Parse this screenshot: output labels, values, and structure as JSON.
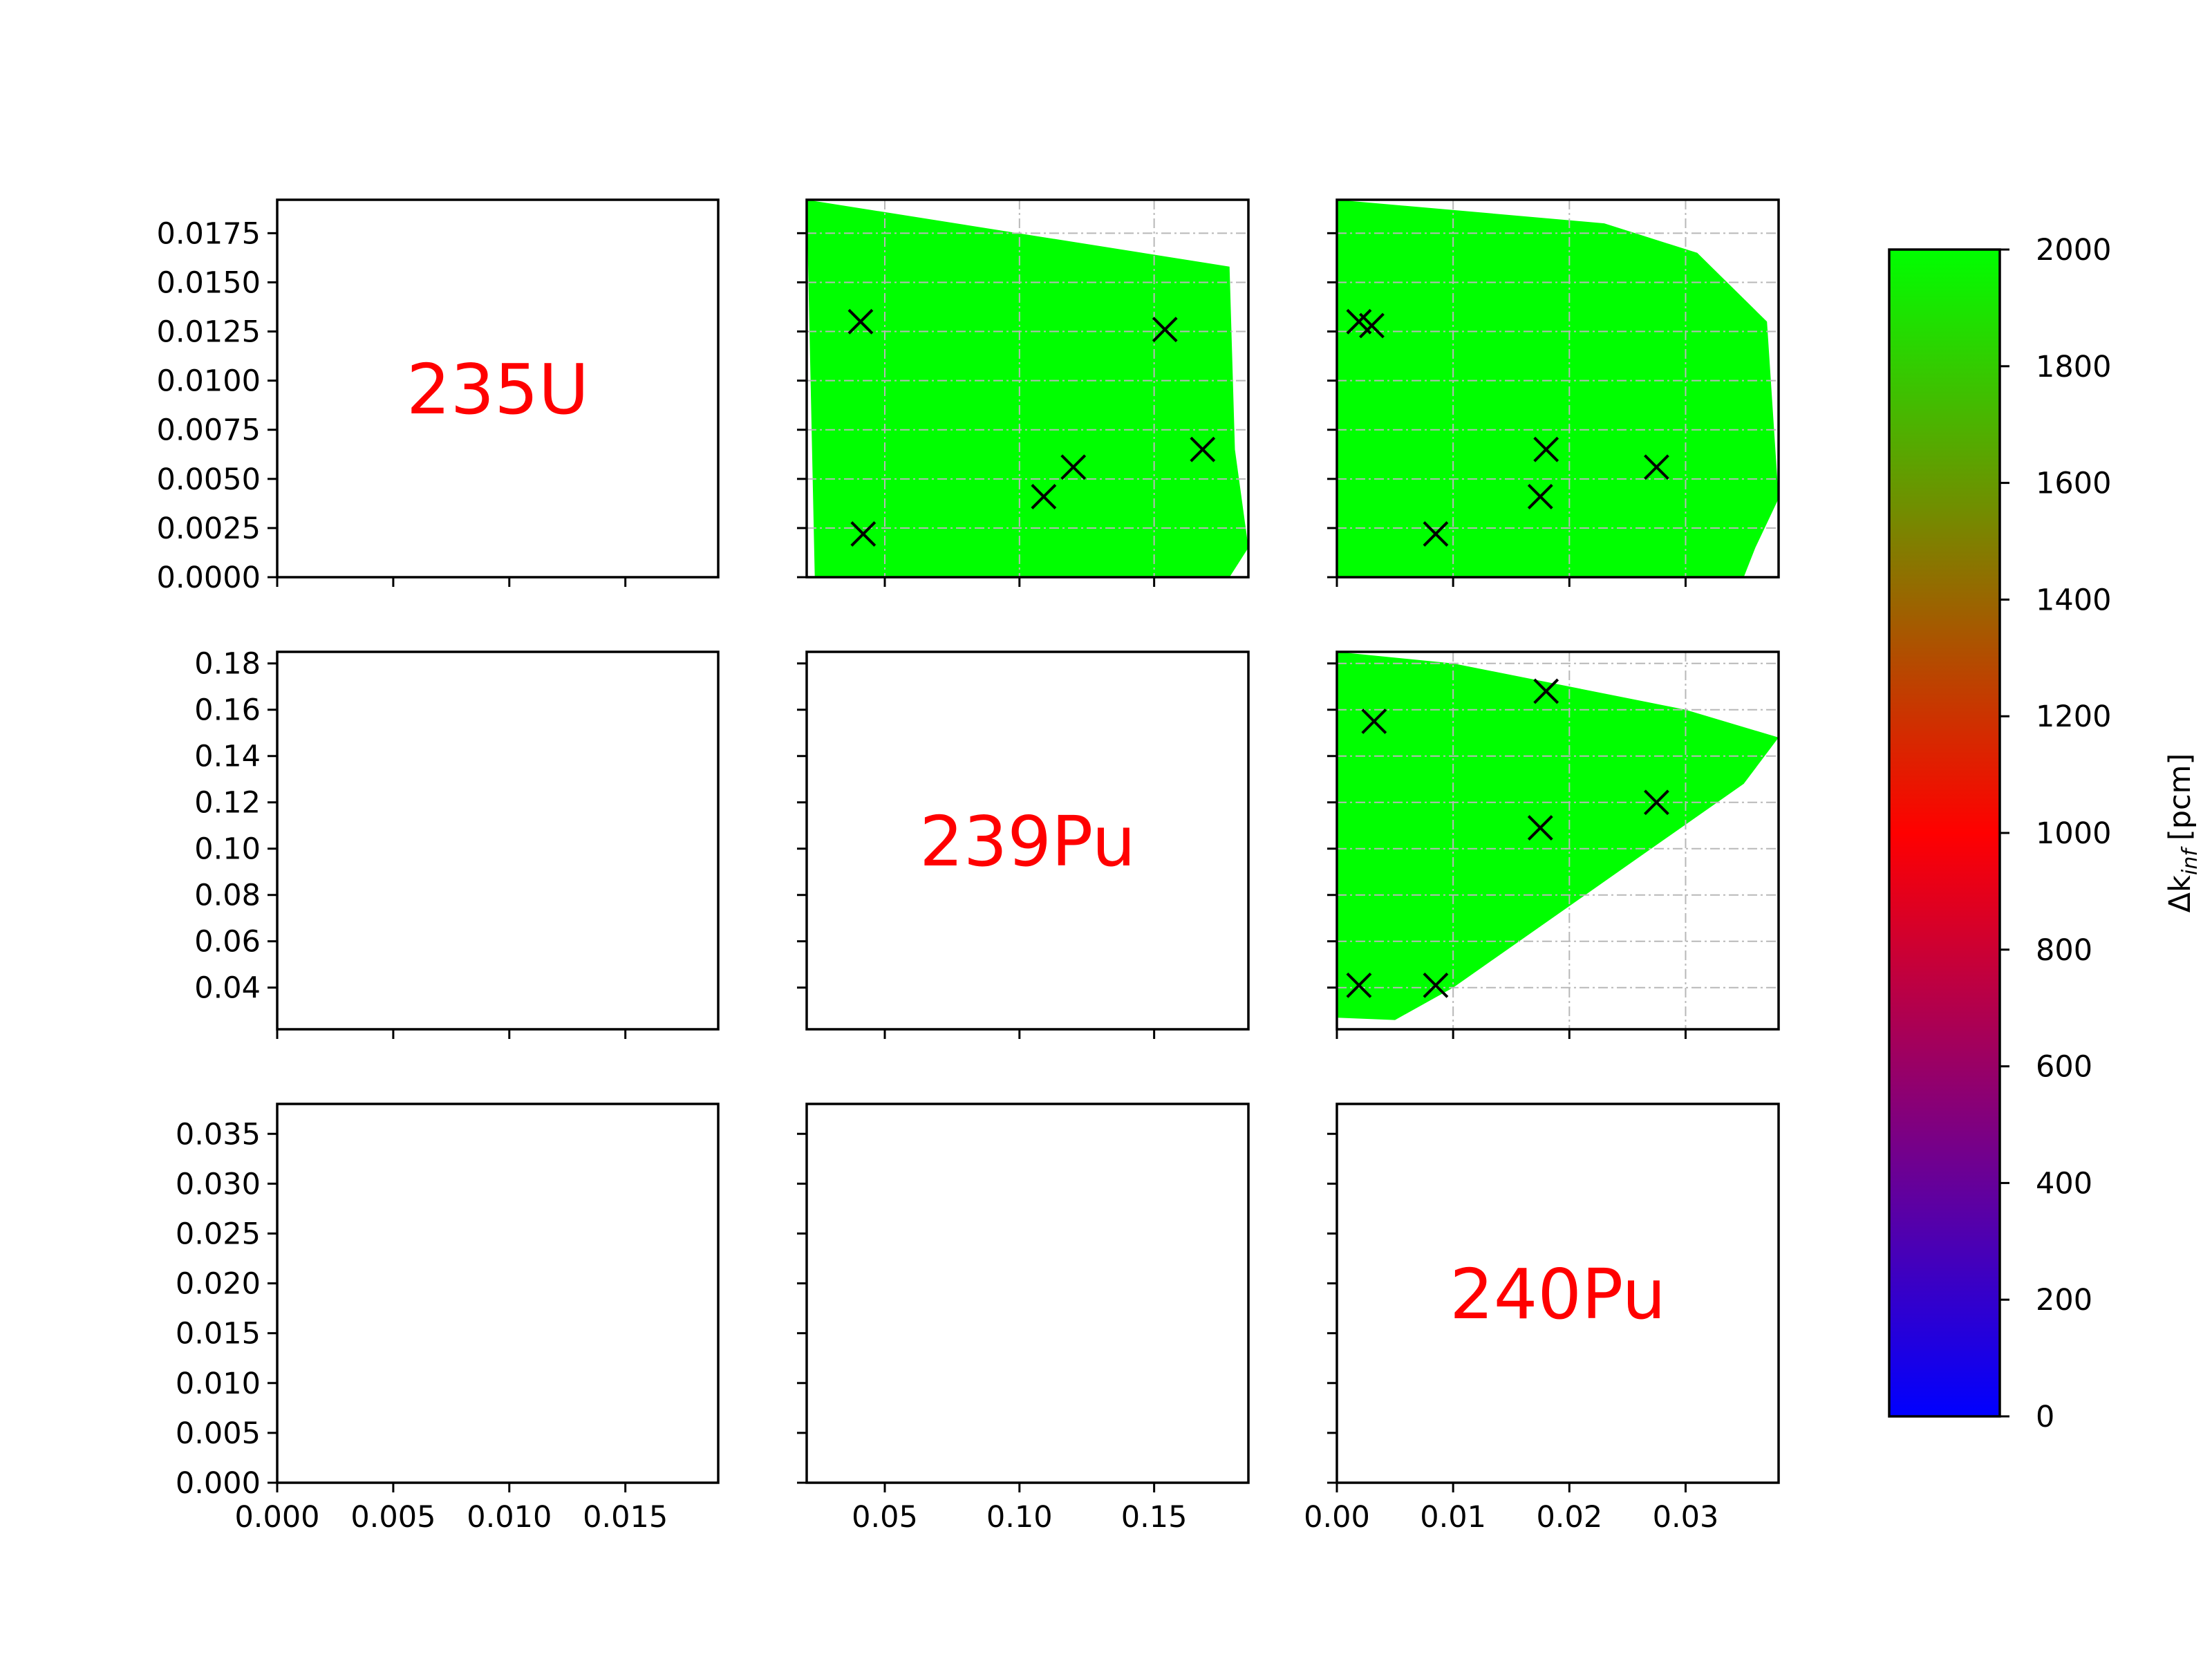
{
  "chart_data": {
    "type": "scatter",
    "layout": "3x3 corner plot",
    "colorbar": {
      "label_base": "Δk",
      "label_sub": "inf",
      "label_unit": "[pcm]",
      "range": [
        0,
        2000
      ],
      "ticks": [
        "0",
        "200",
        "400",
        "600",
        "800",
        "1000",
        "1200",
        "1400",
        "1600",
        "1800",
        "2000"
      ],
      "colors": [
        "#0000ff",
        "#ff0000",
        "#00ff00"
      ]
    },
    "columns": [
      {
        "xlim": [
          0.0,
          0.019
        ],
        "xticks": [
          0.0,
          0.005,
          0.01,
          0.015
        ],
        "xtick_labels": [
          "0.000",
          "0.005",
          "0.010",
          "0.015"
        ]
      },
      {
        "xlim": [
          0.021,
          0.185
        ],
        "xticks": [
          0.05,
          0.1,
          0.15
        ],
        "xtick_labels": [
          "0.05",
          "0.10",
          "0.15"
        ]
      },
      {
        "xlim": [
          0.0,
          0.038
        ],
        "xticks": [
          0.0,
          0.01,
          0.02,
          0.03
        ],
        "xtick_labels": [
          "0.00",
          "0.01",
          "0.02",
          "0.03"
        ]
      }
    ],
    "rows": [
      {
        "ylim": [
          0.0,
          0.0192
        ],
        "yticks": [
          0.0,
          0.0025,
          0.005,
          0.0075,
          0.01,
          0.0125,
          0.015,
          0.0175
        ],
        "ytick_labels": [
          "0.0000",
          "0.0025",
          "0.0050",
          "0.0075",
          "0.0100",
          "0.0125",
          "0.0150",
          "0.0175"
        ]
      },
      {
        "ylim": [
          0.022,
          0.185
        ],
        "yticks": [
          0.04,
          0.06,
          0.08,
          0.1,
          0.12,
          0.14,
          0.16,
          0.18
        ],
        "ytick_labels": [
          "0.04",
          "0.06",
          "0.08",
          "0.10",
          "0.12",
          "0.14",
          "0.16",
          "0.18"
        ]
      },
      {
        "ylim": [
          0.0,
          0.038
        ],
        "yticks": [
          0.0,
          0.005,
          0.01,
          0.015,
          0.02,
          0.025,
          0.03,
          0.035
        ],
        "ytick_labels": [
          "0.000",
          "0.005",
          "0.010",
          "0.015",
          "0.020",
          "0.025",
          "0.030",
          "0.035"
        ]
      }
    ],
    "diagonal_labels": [
      "235U",
      "239Pu",
      "240Pu"
    ],
    "panels": [
      {
        "row": 0,
        "col": 1,
        "grid": true,
        "region": [
          [
            0.021,
            0.0192
          ],
          [
            0.178,
            0.0158
          ],
          [
            0.18,
            0.0065
          ],
          [
            0.185,
            0.0015
          ],
          [
            0.178,
            0.0
          ],
          [
            0.024,
            0.0
          ]
        ],
        "points": [
          [
            0.041,
            0.013
          ],
          [
            0.154,
            0.0126
          ],
          [
            0.168,
            0.0065
          ],
          [
            0.12,
            0.0056
          ],
          [
            0.109,
            0.0041
          ],
          [
            0.042,
            0.0022
          ]
        ]
      },
      {
        "row": 0,
        "col": 2,
        "grid": true,
        "region": [
          [
            0.0,
            0.0192
          ],
          [
            0.023,
            0.018
          ],
          [
            0.031,
            0.0165
          ],
          [
            0.037,
            0.013
          ],
          [
            0.038,
            0.004
          ],
          [
            0.036,
            0.0015
          ],
          [
            0.035,
            0.0
          ],
          [
            0.0,
            0.0
          ]
        ],
        "points": [
          [
            0.0019,
            0.013
          ],
          [
            0.003,
            0.0128
          ],
          [
            0.018,
            0.0065
          ],
          [
            0.0275,
            0.0056
          ],
          [
            0.0175,
            0.0041
          ],
          [
            0.0085,
            0.0022
          ]
        ]
      },
      {
        "row": 1,
        "col": 2,
        "grid": true,
        "region": [
          [
            0.0,
            0.185
          ],
          [
            0.01,
            0.18
          ],
          [
            0.03,
            0.16
          ],
          [
            0.038,
            0.148
          ],
          [
            0.035,
            0.128
          ],
          [
            0.01,
            0.04
          ],
          [
            0.005,
            0.026
          ],
          [
            0.0,
            0.027
          ]
        ],
        "points": [
          [
            0.0032,
            0.155
          ],
          [
            0.018,
            0.168
          ],
          [
            0.0275,
            0.12
          ],
          [
            0.0175,
            0.109
          ],
          [
            0.0019,
            0.041
          ],
          [
            0.0085,
            0.041
          ]
        ]
      }
    ]
  }
}
